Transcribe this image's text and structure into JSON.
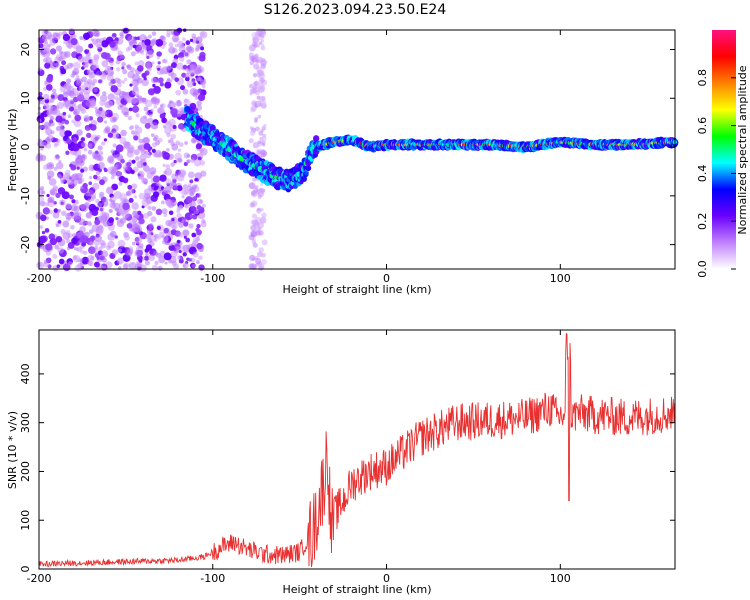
{
  "title": "S126.2023.094.23.50.E24",
  "chart_data": [
    {
      "type": "heatmap",
      "title": "S126.2023.094.23.50.E24",
      "xlabel": "Height of straight line (km)",
      "ylabel": "Frequency (Hz)",
      "xlim": [
        -200,
        166
      ],
      "ylim": [
        -25,
        24
      ],
      "x_ticks": [
        -200,
        -100,
        0,
        100
      ],
      "y_ticks": [
        -20,
        -10,
        0,
        10,
        20
      ],
      "colorbar": {
        "label": "Normalized spectral amplitude",
        "range": [
          0,
          1
        ],
        "ticks": [
          "0.0",
          "0.2",
          "0.4",
          "0.6",
          "0.8"
        ],
        "colors": [
          "#ffffff",
          "#c080ff",
          "#6a00ff",
          "#0000ff",
          "#00ffff",
          "#00ff00",
          "#ffff00",
          "#ff8000",
          "#ff0000",
          "#ff1080"
        ]
      },
      "trace": {
        "x": [
          -115,
          -105,
          -95,
          -85,
          -75,
          -65,
          -55,
          -48,
          -42,
          -30,
          -20,
          -10,
          0,
          20,
          40,
          60,
          80,
          100,
          120,
          140,
          166
        ],
        "y": [
          6,
          3,
          1,
          -2,
          -4,
          -6,
          -7,
          -5,
          0,
          1,
          1.5,
          0,
          0.5,
          0.5,
          0.5,
          0.5,
          0,
          1,
          0.5,
          0.5,
          1
        ]
      },
      "grid": false
    },
    {
      "type": "line",
      "xlabel": "Height of straight line (km)",
      "ylabel": "SNR (10 * v/v)",
      "xlim": [
        -200,
        166
      ],
      "ylim": [
        0,
        490
      ],
      "x_ticks": [
        -200,
        -100,
        0,
        100
      ],
      "y_ticks": [
        0,
        100,
        200,
        300,
        400
      ],
      "color": "#e83030",
      "series": [
        {
          "x": [
            -200,
            -180,
            -160,
            -140,
            -120,
            -105,
            -95,
            -88,
            -80,
            -70,
            -60,
            -50,
            -42,
            -36,
            -34,
            -32,
            -30,
            -25,
            -20,
            -10,
            0,
            10,
            20,
            30,
            40,
            60,
            80,
            95,
            98,
            104,
            106,
            110,
            120,
            140,
            166
          ],
          "y": [
            10,
            12,
            14,
            16,
            18,
            25,
            45,
            55,
            40,
            30,
            28,
            35,
            80,
            180,
            250,
            80,
            110,
            140,
            175,
            200,
            210,
            240,
            270,
            285,
            300,
            305,
            310,
            330,
            310,
            320,
            310,
            320,
            315,
            310,
            320
          ]
        }
      ],
      "grid": false
    }
  ]
}
